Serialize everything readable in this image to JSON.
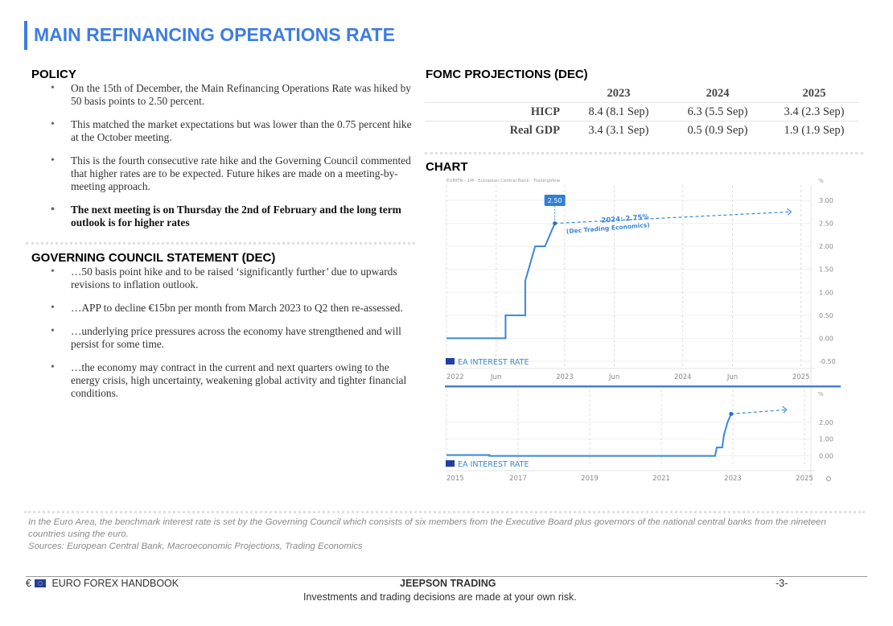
{
  "header": {
    "title": "MAIN REFINANCING OPERATIONS RATE"
  },
  "policy": {
    "heading": "POLICY",
    "bullets": [
      "On the 15th of December, the Main Refinancing Operations Rate was hiked by 50 basis points to 2.50 percent.",
      "This matched the market expectations but was lower than the 0.75 percent hike at the October meeting.",
      "This is the fourth consecutive rate hike and the Governing Council commented that higher rates are to be expected. Future hikes are made on a meeting-by-meeting approach.",
      "The next meeting is on Thursday the 2nd of February and the long term outlook is for higher rates"
    ]
  },
  "statement": {
    "heading": "GOVERNING COUNCIL STATEMENT (DEC)",
    "bullets": [
      "…50 basis point hike and to be raised ‘significantly further’ due to upwards revisions to inflation outlook.",
      "…APP to decline €15bn per month from March 2023 to Q2 then re-assessed.",
      "…underlying price pressures across the economy have strengthened and will persist for some time.",
      "…the economy may contract in the current and next quarters owing to the energy crisis, high uncertainty, weakening global activity and tighter financial conditions."
    ]
  },
  "projections": {
    "heading": "FOMC PROJECTIONS (DEC)",
    "columns": [
      "2023",
      "2024",
      "2025"
    ],
    "rows": [
      {
        "label": "HICP",
        "values": [
          "8.4 (8.1 Sep)",
          "6.3 (5.5 Sep)",
          "3.4 (2.3 Sep)"
        ]
      },
      {
        "label": "Real GDP",
        "values": [
          "3.4 (3.1 Sep)",
          "0.5 (0.9 Sep)",
          "1.9 (1.9 Sep)"
        ]
      }
    ]
  },
  "chart_section": {
    "heading": "CHART"
  },
  "chart_data": [
    {
      "type": "line",
      "header": "EUINTR · 1M · European Central Bank · TradingView",
      "legend": "EA INTEREST RATE",
      "unit": "%",
      "x_ticks": [
        "2022",
        "Jun",
        "2023",
        "Jun",
        "2024",
        "Jun",
        "2025"
      ],
      "y_ticks": [
        "3.00",
        "2.50",
        "2.00",
        "1.50",
        "1.00",
        "0.50",
        "0.00",
        "-0.50"
      ],
      "ylim": [
        -0.5,
        3.0
      ],
      "points": [
        {
          "x": "2022-01",
          "y": 0.0
        },
        {
          "x": "2022-07",
          "y": 0.0
        },
        {
          "x": "2022-07",
          "y": 0.5
        },
        {
          "x": "2022-09",
          "y": 0.5
        },
        {
          "x": "2022-09",
          "y": 1.25
        },
        {
          "x": "2022-10",
          "y": 2.0
        },
        {
          "x": "2022-11",
          "y": 2.0
        },
        {
          "x": "2022-12",
          "y": 2.5
        }
      ],
      "current_label": "2.50",
      "forecast": {
        "from": {
          "x": "2022-12",
          "y": 2.5
        },
        "to": {
          "x": "2024-12",
          "y": 2.75
        }
      },
      "annotation": [
        "2024: 2.75%",
        "(Dec Trading Economics)"
      ]
    },
    {
      "type": "line",
      "legend": "EA INTEREST RATE",
      "unit": "%",
      "x_ticks": [
        "2015",
        "2017",
        "2019",
        "2021",
        "2023",
        "2025"
      ],
      "y_ticks": [
        "2.00",
        "1.00",
        "0.00"
      ],
      "ylim": [
        -0.5,
        3.0
      ],
      "points": [
        {
          "x": 2015.0,
          "y": 0.05
        },
        {
          "x": 2016.2,
          "y": 0.05
        },
        {
          "x": 2016.2,
          "y": 0.0
        },
        {
          "x": 2022.5,
          "y": 0.0
        },
        {
          "x": 2022.55,
          "y": 0.5
        },
        {
          "x": 2022.7,
          "y": 0.5
        },
        {
          "x": 2022.75,
          "y": 1.25
        },
        {
          "x": 2022.85,
          "y": 2.0
        },
        {
          "x": 2022.95,
          "y": 2.5
        }
      ],
      "forecast": {
        "from": {
          "x": 2022.95,
          "y": 2.5
        },
        "to": {
          "x": 2024.5,
          "y": 2.75
        }
      }
    }
  ],
  "footnote": {
    "line1": "In the Euro Area, the benchmark interest rate is set by the  Governing Council which consists of six members from the Executive Board plus governors of the national central banks from the nineteen countries using the euro.",
    "line2": "Sources: European Central Bank, Macroeconomic Projections, Trading Economics"
  },
  "footer": {
    "left_symbol": "€",
    "left_label": "EURO FOREX HANDBOOK",
    "center_title": "JEEPSON TRADING",
    "disclaimer": "Investments and trading decisions are made at your own risk.",
    "page": "-3-"
  },
  "colors": {
    "accent": "#3d7de0",
    "line": "#3a86d8",
    "flag": "#1f3fa6"
  }
}
